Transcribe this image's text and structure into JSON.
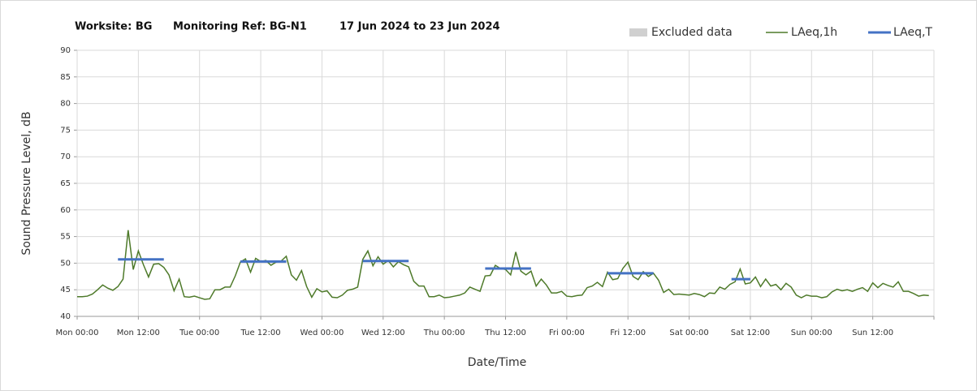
{
  "chart_data": {
    "type": "line",
    "title_parts": [
      "Worksite: BG",
      "Monitoring Ref: BG-N1",
      "17 Jun 2024 to 23 Jun 2024"
    ],
    "xlabel": "Date/Time",
    "ylabel": "Sound Pressure Level, dB",
    "xlim": [
      0,
      168
    ],
    "ylim": [
      40,
      90
    ],
    "yticks": [
      40,
      45,
      50,
      55,
      60,
      65,
      70,
      75,
      80,
      85,
      90
    ],
    "xticks": [
      {
        "value": 0,
        "label": "Mon 00:00"
      },
      {
        "value": 12,
        "label": "Mon 12:00"
      },
      {
        "value": 24,
        "label": "Tue 00:00"
      },
      {
        "value": 36,
        "label": "Tue 12:00"
      },
      {
        "value": 48,
        "label": "Wed 00:00"
      },
      {
        "value": 60,
        "label": "Wed 12:00"
      },
      {
        "value": 72,
        "label": "Thu 00:00"
      },
      {
        "value": 84,
        "label": "Thu 12:00"
      },
      {
        "value": 96,
        "label": "Fri 00:00"
      },
      {
        "value": 108,
        "label": "Fri 12:00"
      },
      {
        "value": 120,
        "label": "Sat 00:00"
      },
      {
        "value": 132,
        "label": "Sat 12:00"
      },
      {
        "value": 144,
        "label": "Sun 00:00"
      },
      {
        "value": 156,
        "label": "Sun 12:00"
      },
      168
    ],
    "grid": true,
    "excluded": {
      "name": "Excluded data",
      "color": "#d0d0d0"
    },
    "series": [
      {
        "name": "LAeq,1h",
        "color": "#4e7a2a",
        "values": [
          43.7,
          43.7,
          43.8,
          44.2,
          45,
          45.9,
          45.3,
          44.9,
          45.6,
          47,
          56.2,
          48.8,
          52.3,
          49.7,
          47.4,
          49.8,
          49.9,
          49.2,
          47.8,
          44.8,
          47,
          43.7,
          43.6,
          43.8,
          43.5,
          43.2,
          43.3,
          45,
          45,
          45.5,
          45.5,
          47.6,
          50.2,
          50.8,
          48.3,
          50.9,
          50.3,
          50.5,
          49.6,
          50.2,
          50.4,
          51.3,
          47.8,
          46.8,
          48.6,
          45.6,
          43.6,
          45.2,
          44.6,
          44.8,
          43.6,
          43.5,
          44,
          44.9,
          45.1,
          45.5,
          50.7,
          52.3,
          49.5,
          51.2,
          49.8,
          50.5,
          49.3,
          50.3,
          49.7,
          49.3,
          46.6,
          45.7,
          45.7,
          43.7,
          43.7,
          44,
          43.5,
          43.6,
          43.8,
          44,
          44.4,
          45.5,
          45.1,
          44.7,
          47.6,
          47.7,
          49.6,
          49,
          48.8,
          47.8,
          52.1,
          48.5,
          47.8,
          48.5,
          45.7,
          47,
          45.9,
          44.4,
          44.4,
          44.7,
          43.8,
          43.7,
          43.9,
          44,
          45.4,
          45.7,
          46.4,
          45.6,
          48.3,
          46.9,
          47.1,
          49,
          50.2,
          47.5,
          46.9,
          48.4,
          47.5,
          48.1,
          46.8,
          44.5,
          45.1,
          44.1,
          44.2,
          44.1,
          44,
          44.3,
          44.1,
          43.7,
          44.4,
          44.3,
          45.5,
          45.1,
          46,
          46.5,
          48.9,
          46.1,
          46.3,
          47.4,
          45.6,
          47,
          45.7,
          46,
          45,
          46.2,
          45.5,
          44,
          43.5,
          44,
          43.8,
          43.8,
          43.5,
          43.7,
          44.6,
          45.1,
          44.8,
          45,
          44.7,
          45.1,
          45.4,
          44.7,
          46.3,
          45.4,
          46.2,
          45.8,
          45.5,
          46.5,
          44.7,
          44.7,
          44.3,
          43.8,
          44,
          43.9
        ]
      }
    ],
    "periods": {
      "name": "LAeq,T",
      "color": "#4472c4",
      "items": [
        {
          "start": 8,
          "end": 17,
          "value": 50.7
        },
        {
          "start": 32,
          "end": 41,
          "value": 50.3
        },
        {
          "start": 56,
          "end": 65,
          "value": 50.4
        },
        {
          "start": 80,
          "end": 89,
          "value": 49
        },
        {
          "start": 104,
          "end": 113,
          "value": 48.1
        },
        {
          "start": 128.3,
          "end": 132,
          "value": 47
        }
      ]
    }
  }
}
